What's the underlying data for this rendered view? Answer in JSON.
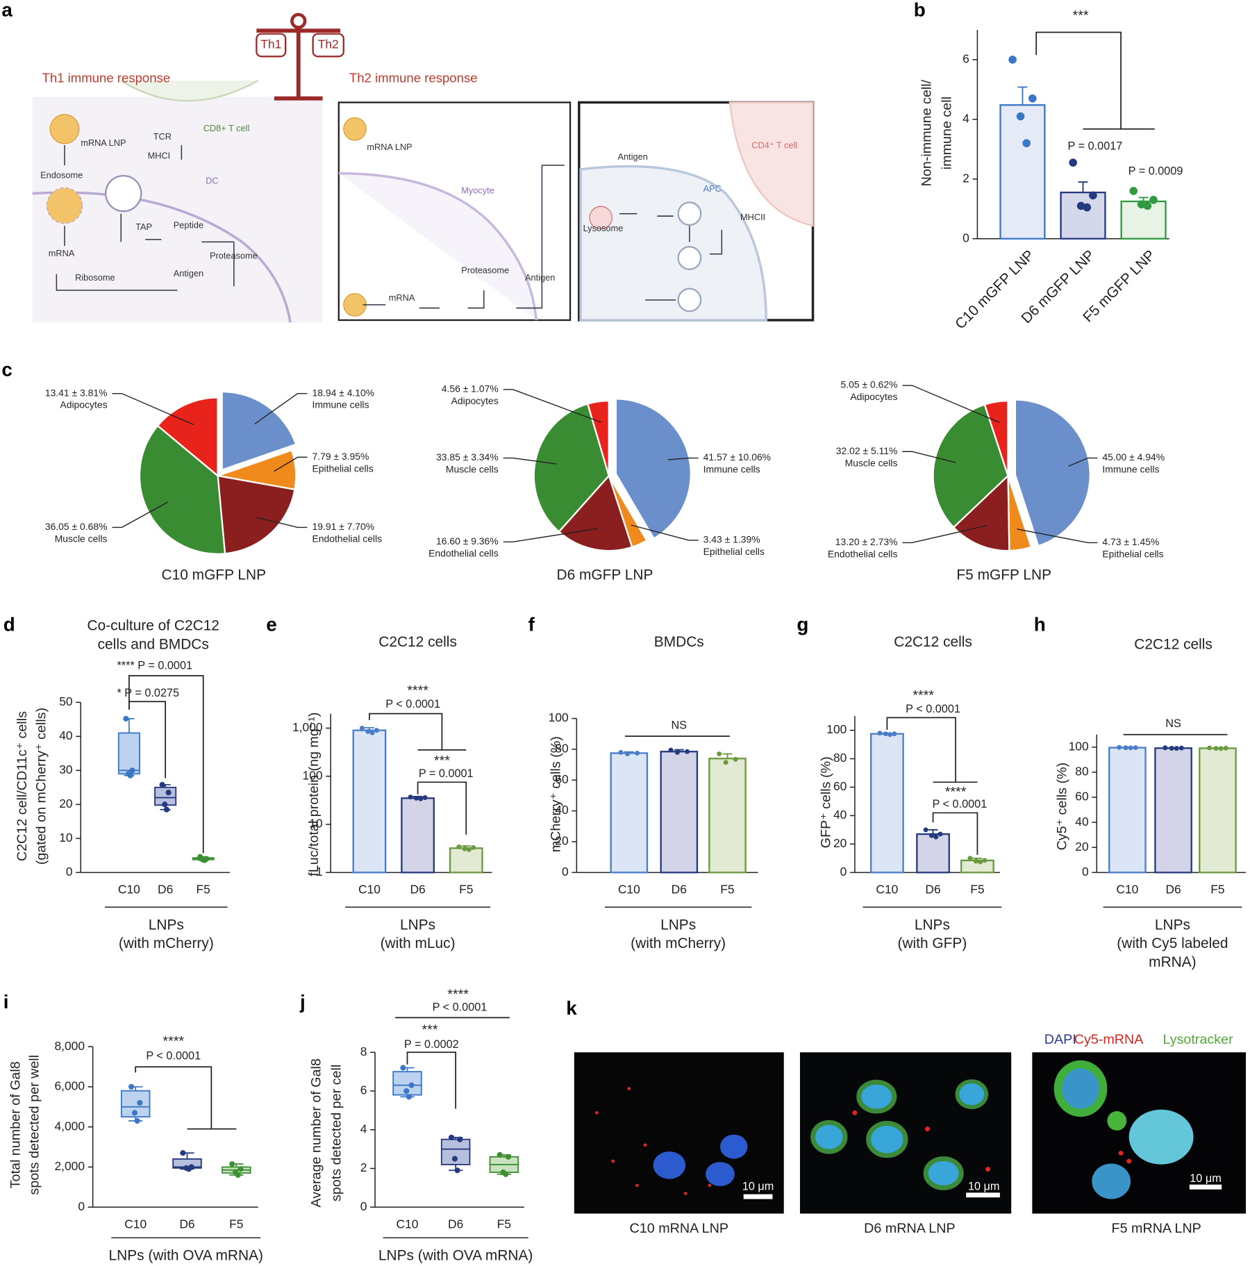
{
  "panel_a": {
    "panel": "a",
    "labels": [
      "Th1",
      "Th2",
      "Th1 immune response",
      "Th2 immune response",
      "mRNA LNP",
      "Endosome",
      "TCR",
      "MHCI",
      "CD8+ T cell",
      "DC",
      "TAP",
      "Peptide",
      "mRNA",
      "Ribosome",
      "Antigen",
      "Proteasome",
      "mRNA LNP",
      "Myocyte",
      "Proteasome",
      "mRNA",
      "Antigen",
      "Antigen",
      "Lysosome",
      "APC",
      "MHCII",
      "CD4⁺ T cell"
    ]
  },
  "chart_data": [
    {
      "panel": "b",
      "type": "bar",
      "categories": [
        "C10 mGFP LNP",
        "D6 mGFP LNP",
        "F5 mGFP LNP"
      ],
      "values": [
        4.48,
        1.55,
        1.25
      ],
      "errors": [
        0.6,
        0.35,
        0.13
      ],
      "points": [
        [
          6.0,
          4.7,
          4.1,
          3.2
        ],
        [
          2.55,
          1.45,
          1.1,
          1.05
        ],
        [
          1.6,
          1.3,
          1.15,
          1.1
        ]
      ],
      "ylim": [
        0,
        7
      ],
      "yticks": [
        0,
        2,
        4,
        6
      ],
      "ylabel": [
        "Non-immune cell/",
        "immune cell"
      ],
      "annotations": [
        "***",
        "P = 0.0017",
        "P = 0.0009"
      ],
      "colors": [
        "#3a77c6",
        "#25397f",
        "#2f9a42"
      ],
      "fills": [
        "#e4ebf7",
        "#d5d8ea",
        "#e8f3e6"
      ]
    },
    {
      "panel": "c",
      "type": "pie",
      "title": "C10 mGFP LNP",
      "categories": [
        "Immune cells",
        "Epithelial cells",
        "Endothelial cells",
        "Muscle cells",
        "Adipocytes"
      ],
      "values": [
        18.94,
        7.79,
        19.91,
        36.05,
        13.41
      ],
      "value_labels": [
        "18.94 ± 4.10%",
        "7.79 ± 3.95%",
        "19.91 ± 7.70%",
        "36.05 ± 0.68%",
        "13.41 ± 3.81%"
      ],
      "colors": [
        "#6b8fcb",
        "#f08a1c",
        "#8b1e1e",
        "#3a8c32",
        "#e8231c"
      ]
    },
    {
      "type": "pie",
      "title": "D6 mGFP LNP",
      "categories": [
        "Immune cells",
        "Epithelial cells",
        "Endothelial cells",
        "Muscle cells",
        "Adipocytes"
      ],
      "values": [
        41.57,
        3.43,
        16.6,
        33.85,
        4.56
      ],
      "value_labels": [
        "41.57 ± 10.06%",
        "3.43 ± 1.39%",
        "16.60 ± 9.36%",
        "33.85 ± 3.34%",
        "4.56 ± 1.07%"
      ],
      "colors": [
        "#6b8fcb",
        "#f08a1c",
        "#8b1e1e",
        "#3a8c32",
        "#e8231c"
      ]
    },
    {
      "type": "pie",
      "title": "F5 mGFP LNP",
      "categories": [
        "Immune cells",
        "Epithelial cells",
        "Endothelial cells",
        "Muscle cells",
        "Adipocytes"
      ],
      "values": [
        45.0,
        4.73,
        13.2,
        32.02,
        5.05
      ],
      "value_labels": [
        "45.00 ± 4.94%",
        "4.73 ± 1.45%",
        "13.20 ± 2.73%",
        "32.02 ± 5.11%",
        "5.05 ± 0.62%"
      ],
      "colors": [
        "#6b8fcb",
        "#f08a1c",
        "#8b1e1e",
        "#3a8c32",
        "#e8231c"
      ]
    },
    {
      "panel": "d",
      "type": "box",
      "title": [
        "Co-culture of C2C12",
        "cells and BMDCs"
      ],
      "categories": [
        "C10",
        "D6",
        "F5"
      ],
      "boxes": [
        {
          "min": 28.5,
          "q1": 29,
          "median": 30,
          "q3": 41,
          "max": 45.2
        },
        {
          "min": 18.5,
          "q1": 19.8,
          "median": 22,
          "q3": 25,
          "max": 25.8
        },
        {
          "min": 3.6,
          "q1": 3.8,
          "median": 4.0,
          "q3": 4.3,
          "max": 4.6
        }
      ],
      "points": [
        [
          45.2,
          30,
          29,
          28.5
        ],
        [
          25.8,
          23.5,
          20,
          18.5
        ],
        [
          4.6,
          4.0,
          3.8,
          3.6
        ]
      ],
      "ylim": [
        0,
        50
      ],
      "yticks": [
        0,
        10,
        20,
        30,
        40,
        50
      ],
      "ylabel": [
        "C2C12 cell/CD11c⁺ cells",
        "(gated on mCherry⁺ cells)"
      ],
      "xlabel": [
        "LNPs",
        "(with mCherry)"
      ],
      "annotations": [
        "**** P = 0.0001",
        "* P = 0.0275"
      ],
      "colors": [
        "#3a77c6",
        "#25397f",
        "#3f8f35"
      ],
      "fills": [
        "#bcd2ee",
        "#b6c0de",
        "#c8e3bd"
      ]
    },
    {
      "panel": "e",
      "type": "bar",
      "title": "C2C12 cells",
      "categories": [
        "C10",
        "D6",
        "F5"
      ],
      "values": [
        900,
        35,
        3.2
      ],
      "errors": [
        120,
        3,
        0.35
      ],
      "points": [
        [
          1000,
          900,
          850,
          800
        ],
        [
          37,
          36,
          35,
          34
        ],
        [
          3.4,
          3.3,
          3.1,
          3.0
        ]
      ],
      "log": true,
      "ylim": [
        1,
        2000
      ],
      "yticks": [
        1,
        10,
        100,
        {
          "value": 1000,
          "label": "1,000"
        }
      ],
      "ylabel": [
        "fLuc/total protein (ng mg⁻¹)"
      ],
      "xlabel": [
        "LNPs",
        "(with mLuc)"
      ],
      "annotations": [
        "****",
        "P < 0.0001",
        "***",
        "P = 0.0001"
      ],
      "colors": [
        "#4a7dc9",
        "#25397f",
        "#6b9a3e"
      ],
      "fills": [
        "#dce5f5",
        "#d3d4e8",
        "#e2ead4"
      ]
    },
    {
      "panel": "f",
      "type": "bar",
      "title": "BMDCs",
      "categories": [
        "C10",
        "D6",
        "F5"
      ],
      "values": [
        77.5,
        78.5,
        74
      ],
      "errors": [
        0.8,
        1.2,
        3
      ],
      "points": [
        [
          78,
          77.5,
          77
        ],
        [
          79.5,
          78.5,
          78
        ],
        [
          77,
          73.5,
          71.5
        ]
      ],
      "ylim": [
        0,
        100
      ],
      "yticks": [
        0,
        20,
        40,
        60,
        80,
        100
      ],
      "ylabel": [
        "mCherry⁺ cells (%)"
      ],
      "xlabel": [
        "LNPs",
        "(with mCherry)"
      ],
      "annotations": [
        "NS"
      ],
      "colors": [
        "#4a7dc9",
        "#25397f",
        "#6b9a3e"
      ],
      "fills": [
        "#dce5f5",
        "#d3d4e8",
        "#e2ead4"
      ]
    },
    {
      "panel": "g",
      "type": "bar",
      "title": "C2C12 cells",
      "categories": [
        "C10",
        "D6",
        "F5"
      ],
      "values": [
        97.5,
        27,
        8.5
      ],
      "errors": [
        0.5,
        3,
        1.5
      ],
      "points": [
        [
          98,
          97.5,
          97.5,
          97
        ],
        [
          30,
          27,
          26,
          25
        ],
        [
          10,
          8.5,
          8,
          7.5
        ]
      ],
      "ylim": [
        0,
        110
      ],
      "yticks": [
        0,
        20,
        40,
        60,
        80,
        100
      ],
      "ylabel": [
        "GFP⁺ cells (%)"
      ],
      "xlabel": [
        "LNPs",
        "(with GFP)"
      ],
      "annotations": [
        "****",
        "P < 0.0001",
        "****",
        "P < 0.0001"
      ],
      "colors": [
        "#4a7dc9",
        "#25397f",
        "#6b9a3e"
      ],
      "fills": [
        "#dce5f5",
        "#d3d4e8",
        "#e2ead4"
      ]
    },
    {
      "panel": "h",
      "type": "bar",
      "title": "C2C12 cells",
      "categories": [
        "C10",
        "D6",
        "F5"
      ],
      "values": [
        99.6,
        99.2,
        99.1
      ],
      "errors": [
        0.3,
        0.4,
        0.4
      ],
      "points": [
        [
          99.8,
          99.6,
          99.5,
          99.4
        ],
        [
          99.5,
          99.3,
          99.1,
          99.0
        ],
        [
          99.4,
          99.2,
          99.0,
          98.9
        ]
      ],
      "ylim": [
        0,
        110
      ],
      "yticks": [
        0,
        20,
        40,
        60,
        80,
        100
      ],
      "ylabel": [
        "Cy5⁺ cells (%)"
      ],
      "xlabel": [
        "LNPs",
        "(with Cy5 labeled",
        "mRNA)"
      ],
      "annotations": [
        "NS"
      ],
      "colors": [
        "#4a7dc9",
        "#25397f",
        "#6b9a3e"
      ],
      "fills": [
        "#dce5f5",
        "#d3d4e8",
        "#e2ead4"
      ]
    },
    {
      "panel": "i",
      "type": "box",
      "categories": [
        "C10",
        "D6",
        "F5"
      ],
      "boxes": [
        {
          "min": 4300,
          "q1": 4500,
          "median": 5000,
          "q3": 5800,
          "max": 6000
        },
        {
          "min": 1900,
          "q1": 1950,
          "median": 2000,
          "q3": 2400,
          "max": 2700
        },
        {
          "min": 1600,
          "q1": 1700,
          "median": 1850,
          "q3": 2000,
          "max": 2150
        }
      ],
      "points": [
        [
          6000,
          5200,
          4700,
          4300
        ],
        [
          2700,
          2000,
          1950,
          1900
        ],
        [
          2150,
          1900,
          1750,
          1600
        ]
      ],
      "ylim": [
        0,
        8000
      ],
      "yticks": [
        0,
        {
          "value": 2000,
          "label": "2,000"
        },
        {
          "value": 4000,
          "label": "4,000"
        },
        {
          "value": 6000,
          "label": "6,000"
        },
        {
          "value": 8000,
          "label": "8,000"
        }
      ],
      "ylabel": [
        "Total number of Gal8",
        "spots detected per well"
      ],
      "xlabel": [
        "LNPs (with OVA mRNA)"
      ],
      "annotations": [
        "****",
        "P < 0.0001"
      ],
      "colors": [
        "#3a77c6",
        "#25397f",
        "#3f8f35"
      ],
      "fills": [
        "#bcd2ee",
        "#b6c0de",
        "#c8e3bd"
      ]
    },
    {
      "panel": "j",
      "type": "box",
      "categories": [
        "C10",
        "D6",
        "F5"
      ],
      "boxes": [
        {
          "min": 5.7,
          "q1": 5.8,
          "median": 6.3,
          "q3": 7.0,
          "max": 7.2
        },
        {
          "min": 1.9,
          "q1": 2.2,
          "median": 3.0,
          "q3": 3.5,
          "max": 3.6
        },
        {
          "min": 1.7,
          "q1": 1.8,
          "median": 2.2,
          "q3": 2.6,
          "max": 2.7
        }
      ],
      "points": [
        [
          7.2,
          6.3,
          6.0,
          5.7
        ],
        [
          3.6,
          3.5,
          2.5,
          1.9
        ],
        [
          2.7,
          2.6,
          1.8,
          1.7
        ]
      ],
      "ylim": [
        0,
        8
      ],
      "yticks": [
        0,
        2,
        4,
        6,
        8
      ],
      "ylabel": [
        "Average number of Gal8",
        "spots detected per cell"
      ],
      "xlabel": [
        "LNPs (with OVA mRNA)"
      ],
      "annotations": [
        "****",
        "P < 0.0001",
        "***",
        "P = 0.0002"
      ],
      "colors": [
        "#3a77c6",
        "#25397f",
        "#3f8f35"
      ],
      "fills": [
        "#bcd2ee",
        "#b6c0de",
        "#c8e3bd"
      ]
    }
  ],
  "panel_k": {
    "panel": "k",
    "legend": [
      "DAPI",
      "Cy5-mRNA",
      "Lysotracker"
    ],
    "scale_bars": [
      "10 μm",
      "10 μm",
      "10 μm"
    ],
    "captions": [
      "C10 mRNA LNP",
      "D6 mRNA LNP",
      "F5 mRNA LNP"
    ]
  }
}
